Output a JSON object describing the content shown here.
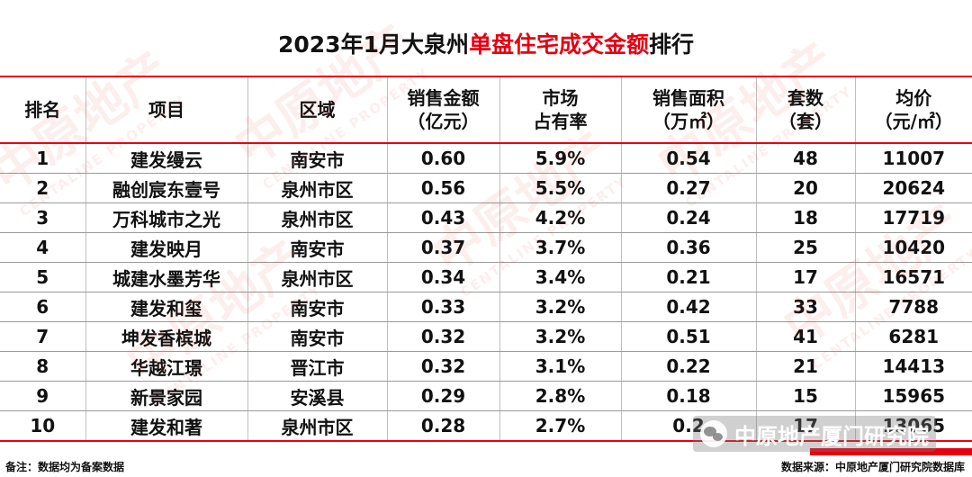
{
  "title": {
    "prefix": "2023年1月大泉州",
    "highlight": "单盘住宅成交金额",
    "suffix": "排行"
  },
  "accent_color": "#e60012",
  "watermark": {
    "cn": "中原地产",
    "en": "CENTALINE PROPERTY"
  },
  "table": {
    "headers": [
      {
        "line1": "排名",
        "line2": ""
      },
      {
        "line1": "项目",
        "line2": ""
      },
      {
        "line1": "区域",
        "line2": ""
      },
      {
        "line1": "销售金额",
        "line2": "（亿元）"
      },
      {
        "line1": "市场",
        "line2": "占有率"
      },
      {
        "line1": "销售面积",
        "line2": "（万㎡）"
      },
      {
        "line1": "套数",
        "line2": "（套）"
      },
      {
        "line1": "均价",
        "line2": "（元/㎡）"
      }
    ],
    "rows": [
      [
        "1",
        "建发缦云",
        "南安市",
        "0.60",
        "5.9%",
        "0.54",
        "48",
        "11007"
      ],
      [
        "2",
        "融创宸东壹号",
        "泉州市区",
        "0.56",
        "5.5%",
        "0.27",
        "20",
        "20624"
      ],
      [
        "3",
        "万科城市之光",
        "泉州市区",
        "0.43",
        "4.2%",
        "0.24",
        "18",
        "17719"
      ],
      [
        "4",
        "建发映月",
        "南安市",
        "0.37",
        "3.7%",
        "0.36",
        "25",
        "10420"
      ],
      [
        "5",
        "城建水墨芳华",
        "泉州市区",
        "0.34",
        "3.4%",
        "0.21",
        "17",
        "16571"
      ],
      [
        "6",
        "建发和玺",
        "南安市",
        "0.33",
        "3.2%",
        "0.42",
        "33",
        "7788"
      ],
      [
        "7",
        "坤发香槟城",
        "南安市",
        "0.32",
        "3.2%",
        "0.51",
        "41",
        "6281"
      ],
      [
        "8",
        "华越江璟",
        "晋江市",
        "0.32",
        "3.1%",
        "0.22",
        "21",
        "14413"
      ],
      [
        "9",
        "新景家园",
        "安溪县",
        "0.29",
        "2.8%",
        "0.18",
        "15",
        "15965"
      ],
      [
        "10",
        "建发和著",
        "泉州市区",
        "0.28",
        "2.7%",
        "0.2",
        "17",
        "13065"
      ]
    ]
  },
  "footer": {
    "note": "备注：数据均为备案数据",
    "source": "数据来源：中原地产厦门研究院数据库"
  },
  "wechat_badge": {
    "icon": "wechat-icon",
    "text": "中原地产厦门研究院"
  }
}
